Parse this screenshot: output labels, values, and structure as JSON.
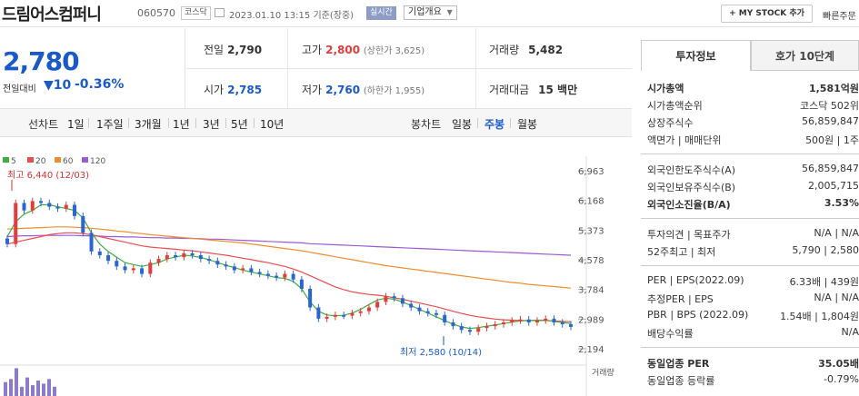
{
  "header": {
    "company": "드림어스컴퍼니",
    "code": "060570",
    "market": "코스닥",
    "datetime": "2023.01.10 13:15",
    "basis": "기준(장중)",
    "realtime": "실시간",
    "corp_overview": "기업개요",
    "mystock": "+ MY STOCK 추가",
    "quick": "빠른주문"
  },
  "price": {
    "current": "2,780",
    "change_label": "전일대비",
    "change_arrow": "▼",
    "change": "10",
    "change_pct": "-0.36%"
  },
  "quote": {
    "prev_label": "전일",
    "prev": "2,790",
    "high_label": "고가",
    "high": "2,800",
    "upper_limit": "(상한가 3,625)",
    "volume_label": "거래량",
    "volume": "5,482",
    "open_label": "시가",
    "open": "2,785",
    "low_label": "저가",
    "low": "2,760",
    "lower_limit": "(하한가 1,955)",
    "amount_label": "거래대금",
    "amount": "15 백만"
  },
  "period": {
    "line_label": "선차트",
    "line_items": [
      "1일",
      "1주일",
      "3개월",
      "1년",
      "3년",
      "5년",
      "10년"
    ],
    "candle_label": "봉차트",
    "candle_items": [
      "일봉",
      "주봉",
      "월봉"
    ],
    "candle_active": "주봉"
  },
  "colors": {
    "up": "#e23c3c",
    "down": "#2a66d1",
    "ma5": "#3fae3f",
    "ma20": "#e84c4c",
    "ma60": "#f08c2c",
    "ma120": "#9a5ad6"
  },
  "chart_data": {
    "type": "candlestick",
    "legend": [
      "5",
      "20",
      "60",
      "120"
    ],
    "y_ticks": [
      "6,963",
      "6,168",
      "5,373",
      "4,578",
      "3,784",
      "2,989",
      "2,194"
    ],
    "ylim": [
      2194,
      6963
    ],
    "high_annotation": "최고 6,440 (12/03)",
    "low_annotation": "최저 2,580 (10/14)",
    "volume_label": "거래량",
    "closes": [
      5000,
      6100,
      5900,
      6150,
      6100,
      6000,
      5950,
      6050,
      5750,
      5300,
      4800,
      4700,
      4550,
      4400,
      4300,
      4350,
      4200,
      4500,
      4600,
      4700,
      4650,
      4750,
      4700,
      4600,
      4550,
      4450,
      4400,
      4300,
      4350,
      4250,
      4200,
      4150,
      4100,
      4200,
      4050,
      3800,
      3300,
      3000,
      3050,
      3100,
      3080,
      3150,
      3200,
      3300,
      3450,
      3600,
      3550,
      3400,
      3300,
      3200,
      3150,
      3100,
      2900,
      2800,
      2700,
      2650,
      2750,
      2800,
      2850,
      2900,
      2950,
      2980,
      2900,
      2950,
      3000,
      2900,
      2850,
      2780
    ],
    "ma": {
      "5": [
        5200,
        5600,
        5800,
        5900,
        6050,
        6050,
        6000,
        5950,
        5900,
        5700,
        5300,
        5000,
        4800,
        4650,
        4500,
        4450,
        4400,
        4450,
        4500,
        4600,
        4650,
        4700,
        4680,
        4640,
        4580,
        4500,
        4430,
        4370,
        4300,
        4250,
        4200,
        4150,
        4100,
        4080,
        4000,
        3800,
        3450,
        3200,
        3100,
        3080,
        3090,
        3150,
        3250,
        3380,
        3500,
        3550,
        3520,
        3450,
        3350,
        3250,
        3150,
        3050,
        2950,
        2850,
        2780,
        2740,
        2760,
        2800,
        2830,
        2870,
        2910,
        2940,
        2950,
        2960,
        2960,
        2930,
        2900,
        2870
      ],
      "20": [
        5000,
        5050,
        5100,
        5150,
        5200,
        5250,
        5280,
        5300,
        5300,
        5280,
        5250,
        5200,
        5150,
        5100,
        5050,
        5000,
        4950,
        4920,
        4900,
        4880,
        4860,
        4840,
        4820,
        4790,
        4760,
        4730,
        4700,
        4660,
        4620,
        4580,
        4540,
        4500,
        4450,
        4400,
        4330,
        4250,
        4150,
        4050,
        3950,
        3850,
        3780,
        3720,
        3680,
        3650,
        3630,
        3600,
        3560,
        3520,
        3470,
        3420,
        3370,
        3320,
        3260,
        3200,
        3140,
        3090,
        3050,
        3020,
        2990,
        2970,
        2960,
        2950,
        2950,
        2950,
        2950,
        2940,
        2930,
        2920
      ],
      "60": [
        5400,
        5410,
        5420,
        5430,
        5440,
        5450,
        5460,
        5460,
        5450,
        5440,
        5420,
        5400,
        5380,
        5350,
        5330,
        5300,
        5280,
        5250,
        5230,
        5210,
        5190,
        5170,
        5150,
        5130,
        5110,
        5090,
        5070,
        5050,
        5030,
        5000,
        4970,
        4940,
        4910,
        4880,
        4850,
        4820,
        4780,
        4740,
        4700,
        4660,
        4620,
        4580,
        4540,
        4500,
        4460,
        4420,
        4390,
        4360,
        4330,
        4300,
        4270,
        4240,
        4210,
        4180,
        4150,
        4120,
        4090,
        4060,
        4030,
        4000,
        3970,
        3950,
        3920,
        3900,
        3880,
        3860,
        3840,
        3820
      ],
      "120": [
        5200,
        5210,
        5220,
        5220,
        5230,
        5230,
        5230,
        5230,
        5230,
        5220,
        5220,
        5210,
        5200,
        5200,
        5190,
        5190,
        5180,
        5170,
        5170,
        5160,
        5160,
        5150,
        5150,
        5140,
        5130,
        5130,
        5120,
        5110,
        5100,
        5090,
        5080,
        5070,
        5060,
        5050,
        5040,
        5030,
        5010,
        5000,
        4990,
        4980,
        4970,
        4960,
        4950,
        4940,
        4930,
        4920,
        4910,
        4900,
        4890,
        4880,
        4870,
        4860,
        4850,
        4840,
        4830,
        4820,
        4810,
        4800,
        4790,
        4780,
        4770,
        4760,
        4750,
        4740,
        4730,
        4720,
        4710,
        4700
      ]
    },
    "volumes": [
      0.45,
      0.55,
      0.9,
      0.3,
      0.6,
      0.35,
      0.5,
      0.4,
      0.55,
      0.3
    ]
  },
  "side": {
    "tab_invest": "투자정보",
    "tab_orderbook": "호가 10단계",
    "mcap_label": "시가총액",
    "mcap": "1,581억원",
    "mcap_rank_label": "시가총액순위",
    "mcap_rank": "코스닥 502위",
    "shares_label": "상장주식수",
    "shares": "56,859,847",
    "par_label": "액면가 | 매매단위",
    "par": "500원 | 1주",
    "foreign_limit_label": "외국인한도주식수(A)",
    "foreign_limit": "56,859,847",
    "foreign_hold_label": "외국인보유주식수(B)",
    "foreign_hold": "2,005,715",
    "foreign_ratio_label": "외국인소진율(B/A)",
    "foreign_ratio": "3.53%",
    "opinion_label": "투자의견 | 목표주가",
    "opinion": "N/A | N/A",
    "week52_label": "52주최고 | 최저",
    "week52": "5,790 | 2,580",
    "per_label": "PER | EPS(2022.09)",
    "per": "6.33배 | 439원",
    "est_per_label": "추정PER | EPS",
    "est_per": "N/A | N/A",
    "pbr_label": "PBR | BPS (2022.09)",
    "pbr": "1.54배 | 1,804원",
    "div_label": "배당수익률",
    "div": "N/A",
    "ind_per_label": "동일업종 PER",
    "ind_per": "35.05배",
    "ind_rate_label": "동일업종 등락률",
    "ind_rate": "-0.79%"
  }
}
